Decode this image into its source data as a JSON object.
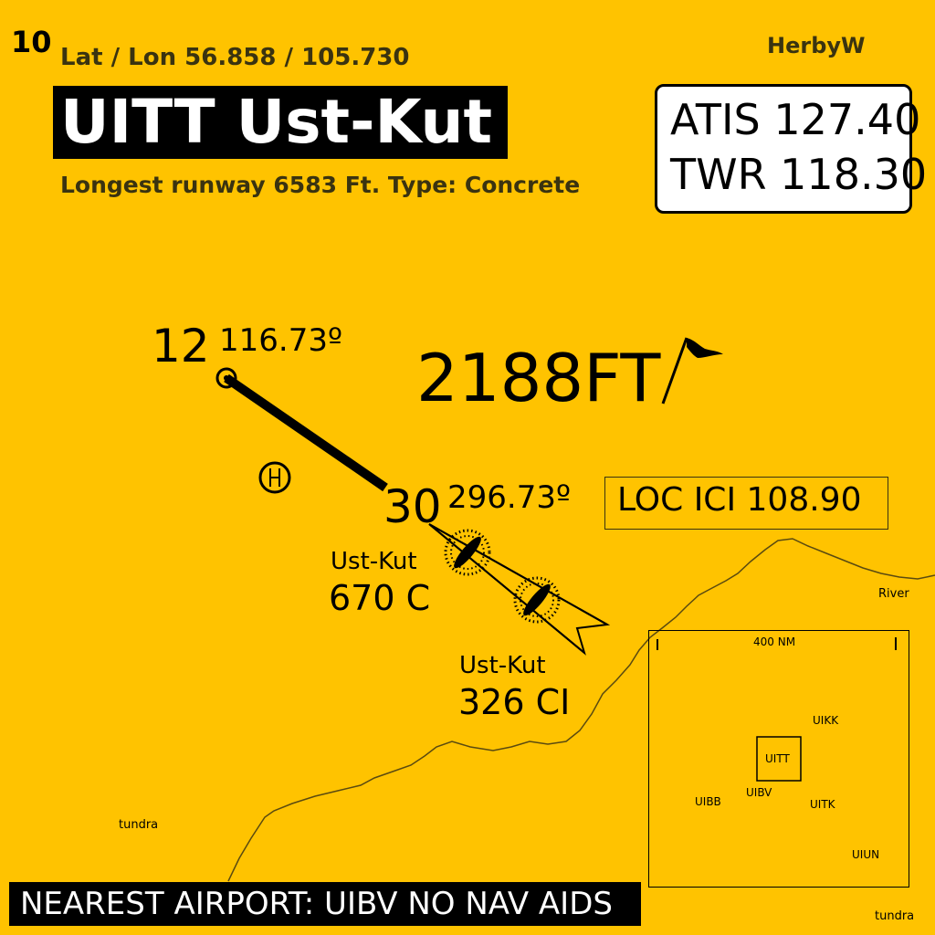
{
  "chart": {
    "number": "10",
    "latlon": "Lat / Lon 56.858 / 105.730",
    "author": "HerbyW",
    "title": "UITT Ust-Kut",
    "runway_info": "Longest runway 6583 Ft. Type: Concrete",
    "nearest": "NEAREST  AIRPORT: UIBV NO NAV AIDS"
  },
  "frequencies": {
    "atis": "ATIS 127.40",
    "twr": "TWR 118.30",
    "loc": "LOC ICI   108.90"
  },
  "runway": {
    "end1": {
      "id": "12",
      "heading": "116.73º"
    },
    "end2": {
      "id": "30",
      "heading": "296.73º"
    },
    "elevation": "2188FT"
  },
  "navaids": [
    {
      "name": "Ust-Kut",
      "freq": "670 C"
    },
    {
      "name": "Ust-Kut",
      "freq": "326 CI"
    }
  ],
  "terrain": {
    "river": "River",
    "tundra1": "tundra",
    "tundra2": "tundra"
  },
  "inset": {
    "scale": "400 NM",
    "airports": [
      "UITT",
      "UIKK",
      "UIBB",
      "UIBV",
      "UITK",
      "UIUN"
    ]
  },
  "colors": {
    "background": "#FFC300",
    "ink": "#000000"
  }
}
